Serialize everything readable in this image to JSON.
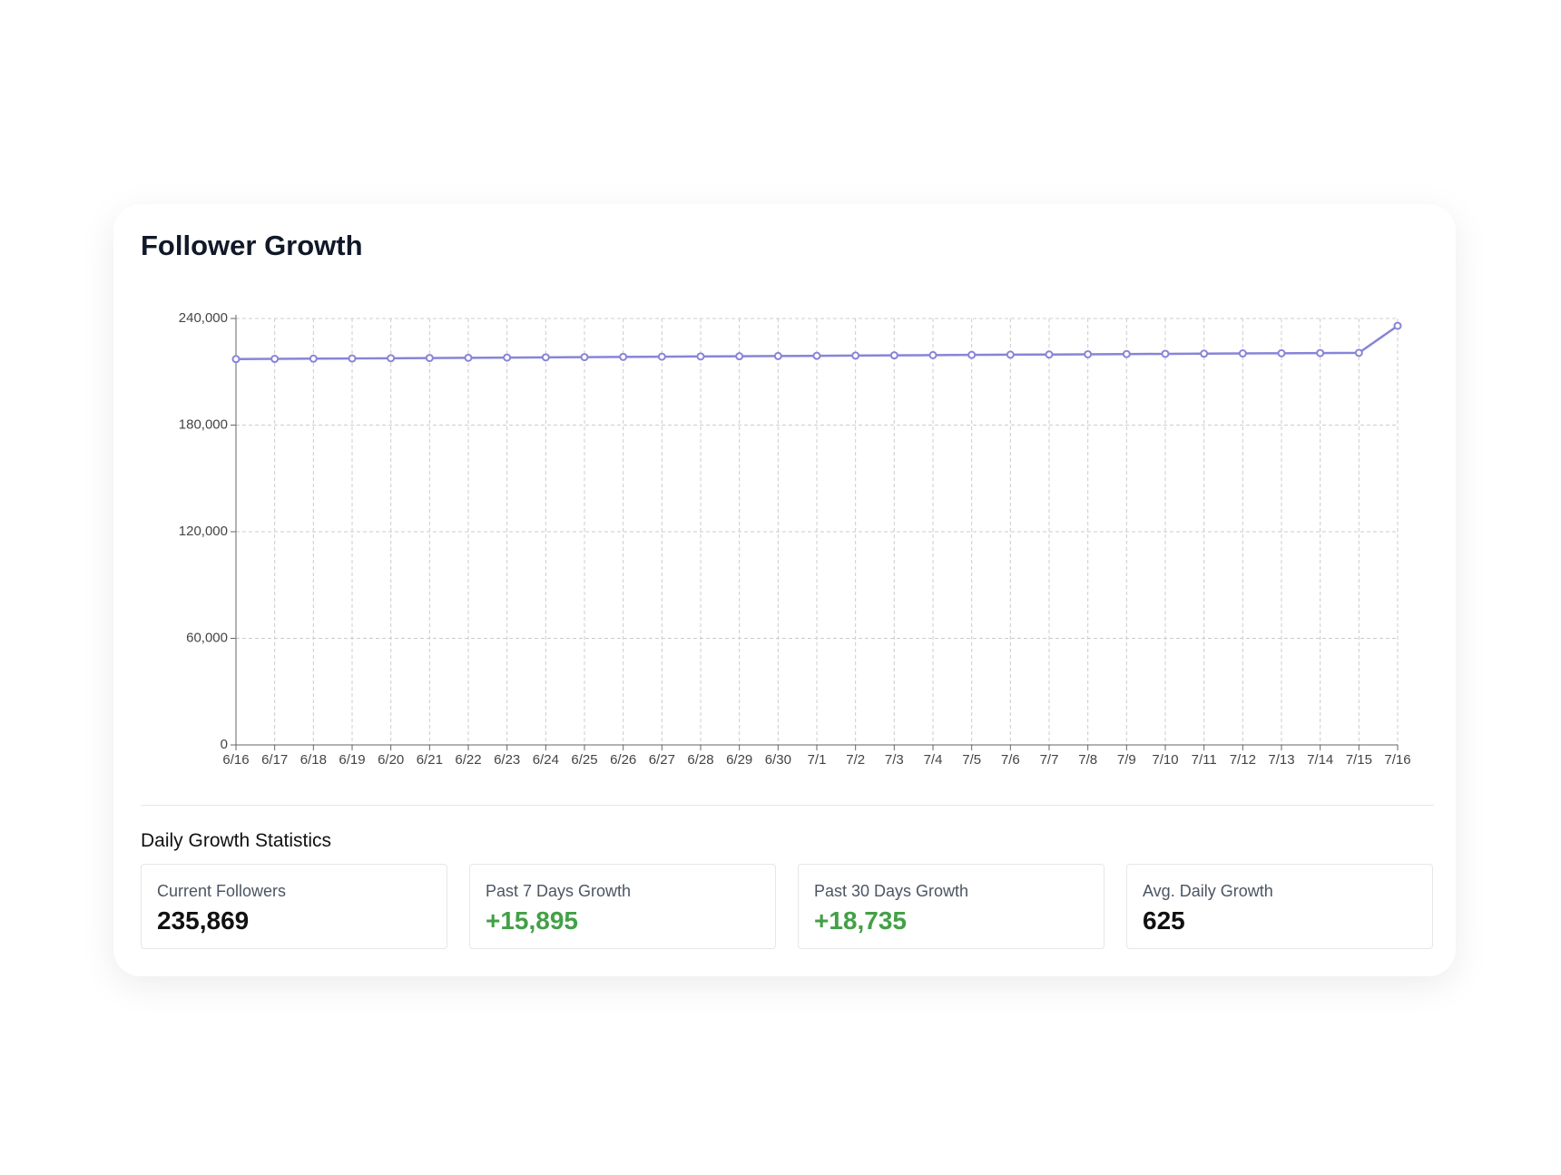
{
  "chart_data": {
    "type": "line",
    "title": "Follower Growth",
    "x": [
      "6/16",
      "6/17",
      "6/18",
      "6/19",
      "6/20",
      "6/21",
      "6/22",
      "6/23",
      "6/24",
      "6/25",
      "6/26",
      "6/27",
      "6/28",
      "6/29",
      "6/30",
      "7/1",
      "7/2",
      "7/3",
      "7/4",
      "7/5",
      "7/6",
      "7/7",
      "7/8",
      "7/9",
      "7/10",
      "7/11",
      "7/12",
      "7/13",
      "7/14",
      "7/15",
      "7/16"
    ],
    "series": [
      {
        "color": "#8884d8",
        "values": [
          217134,
          217260,
          217380,
          217500,
          217620,
          217750,
          217870,
          218000,
          218120,
          218250,
          218370,
          218490,
          218620,
          218740,
          218860,
          218990,
          219110,
          219240,
          219360,
          219480,
          219610,
          219730,
          219850,
          219974,
          220090,
          220200,
          220310,
          220430,
          220540,
          220660,
          235869
        ]
      }
    ],
    "ylim": [
      0,
      240000
    ],
    "yticks": [
      0,
      {
        "value": 60000,
        "label": "60,000"
      },
      {
        "value": 120000,
        "label": "120,000"
      },
      {
        "value": 180000,
        "label": "180,000"
      },
      {
        "value": 240000,
        "label": "240,000"
      }
    ],
    "grid": true
  },
  "stats": {
    "title": "Daily Growth Statistics",
    "cards": [
      {
        "label": "Current Followers",
        "value": "235,869"
      },
      {
        "label": "Past 7 Days Growth",
        "value": "+15,895"
      },
      {
        "label": "Past 30 Days Growth",
        "value": "+18,735"
      },
      {
        "label": "Avg. Daily Growth",
        "value": "625"
      }
    ]
  }
}
